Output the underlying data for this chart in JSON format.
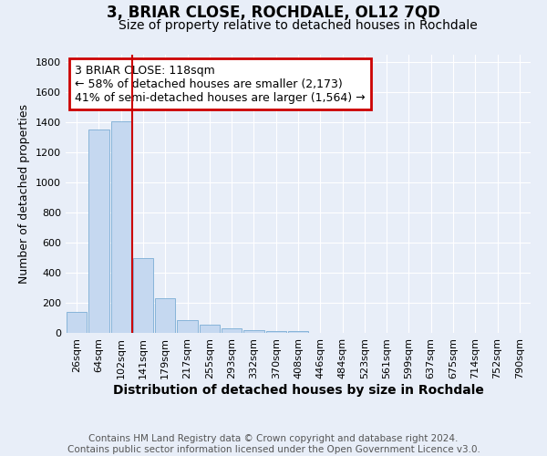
{
  "title": "3, BRIAR CLOSE, ROCHDALE, OL12 7QD",
  "subtitle": "Size of property relative to detached houses in Rochdale",
  "xlabel": "Distribution of detached houses by size in Rochdale",
  "ylabel": "Number of detached properties",
  "categories": [
    "26sqm",
    "64sqm",
    "102sqm",
    "141sqm",
    "179sqm",
    "217sqm",
    "255sqm",
    "293sqm",
    "332sqm",
    "370sqm",
    "408sqm",
    "446sqm",
    "484sqm",
    "523sqm",
    "561sqm",
    "599sqm",
    "637sqm",
    "675sqm",
    "714sqm",
    "752sqm",
    "790sqm"
  ],
  "bar_heights": [
    140,
    1350,
    1410,
    500,
    230,
    85,
    55,
    30,
    20,
    15,
    15,
    0,
    0,
    0,
    0,
    0,
    0,
    0,
    0,
    0,
    0
  ],
  "bar_color": "#c5d8f0",
  "bar_edge_color": "#7aadd4",
  "background_color": "#e8eef8",
  "grid_color": "#ffffff",
  "red_line_x": 2.5,
  "annotation_text": "3 BRIAR CLOSE: 118sqm\n← 58% of detached houses are smaller (2,173)\n41% of semi-detached houses are larger (1,564) →",
  "annotation_box_color": "#ffffff",
  "annotation_box_edge": "#cc0000",
  "ylim": [
    0,
    1850
  ],
  "yticks": [
    0,
    200,
    400,
    600,
    800,
    1000,
    1200,
    1400,
    1600,
    1800
  ],
  "footer_line1": "Contains HM Land Registry data © Crown copyright and database right 2024.",
  "footer_line2": "Contains public sector information licensed under the Open Government Licence v3.0.",
  "title_fontsize": 12,
  "subtitle_fontsize": 10,
  "xlabel_fontsize": 10,
  "ylabel_fontsize": 9,
  "tick_fontsize": 8,
  "annotation_fontsize": 9,
  "footer_fontsize": 7.5
}
